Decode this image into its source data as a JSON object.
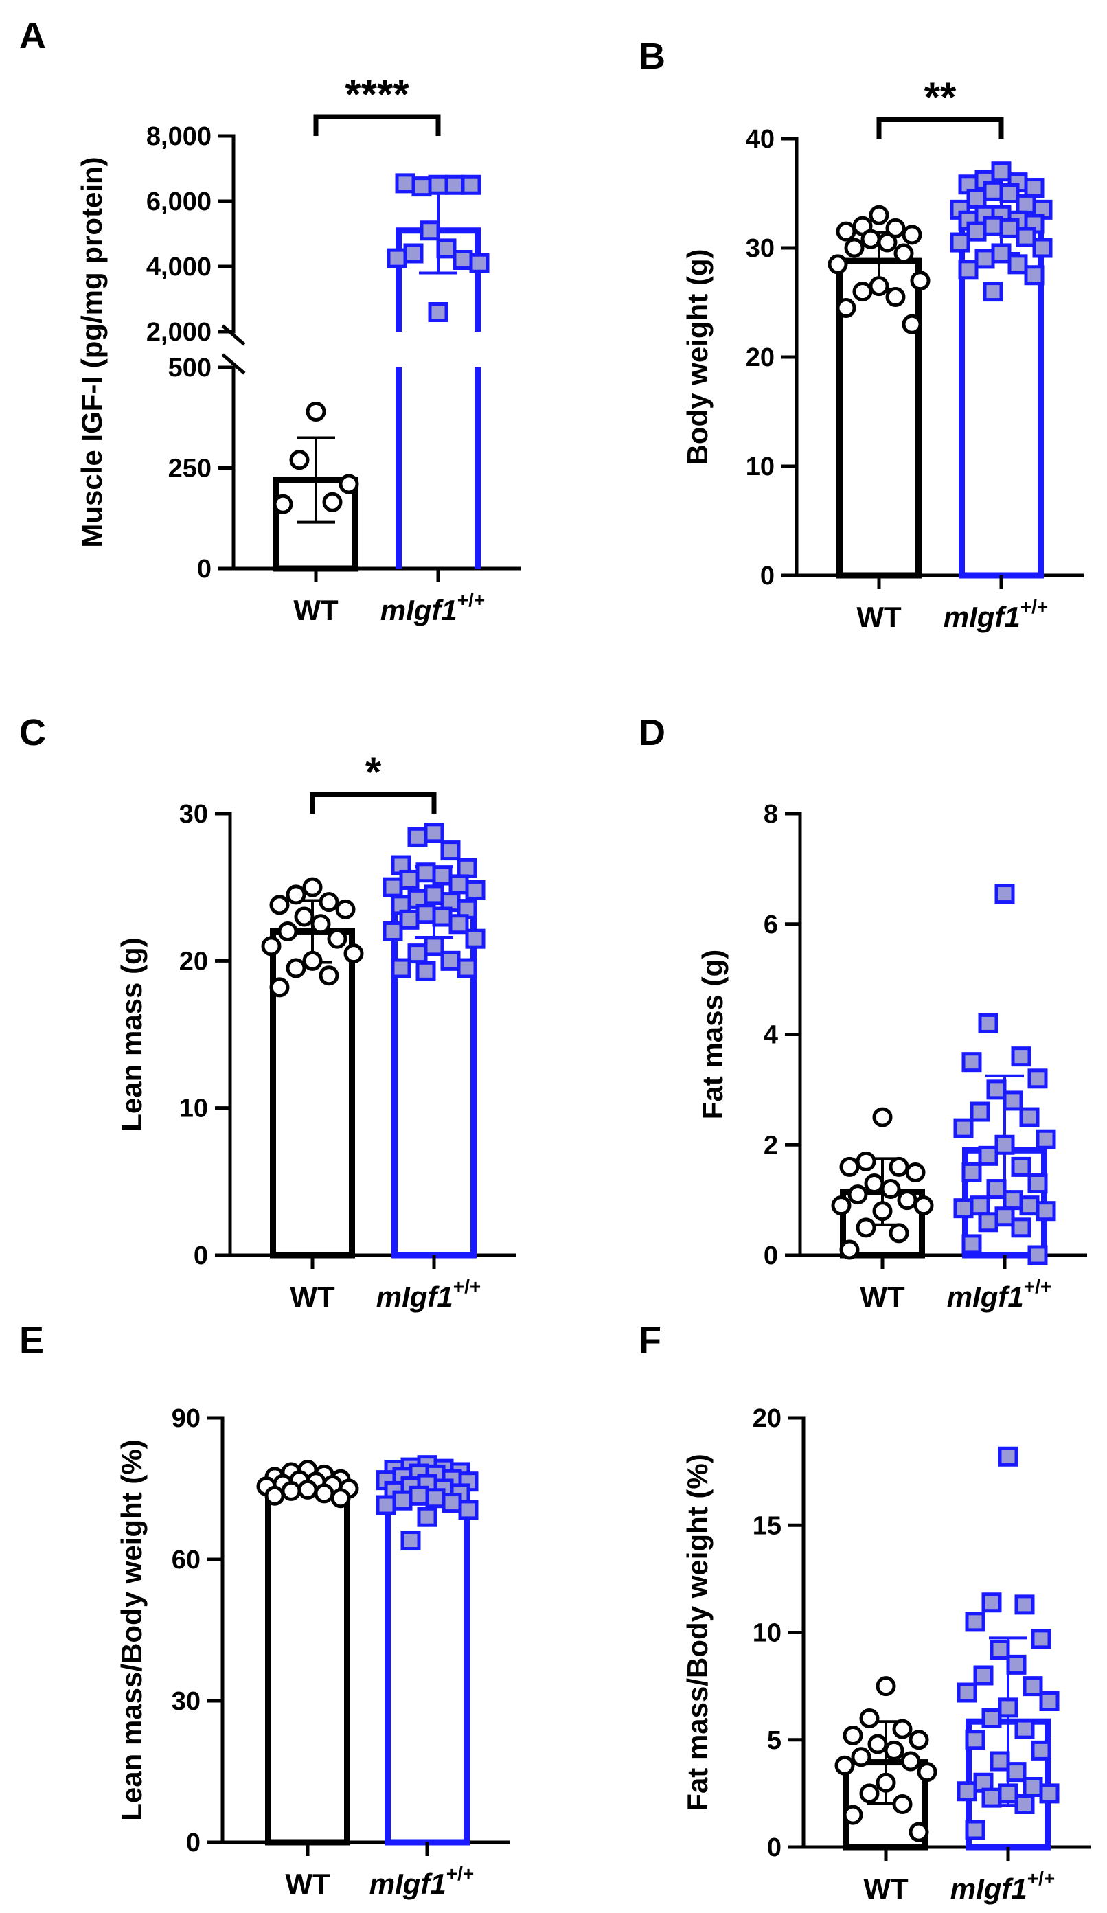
{
  "figure": {
    "colors": {
      "wt": "#000000",
      "mut": "#1a1aff",
      "mut_fill": "#9a9ad6",
      "bg": "#ffffff"
    }
  },
  "chart_data": [
    {
      "panel": "A",
      "type": "bar",
      "ylabel": "Muscle IGF-I (pg/mg protein)",
      "categories": [
        "WT",
        "mIgf1",
        "+/+"
      ],
      "broken_axis": true,
      "lower_ticks": [
        0,
        250,
        500
      ],
      "upper_ticks": [
        2000,
        4000,
        6000,
        8000
      ],
      "tick_labels": [
        "0",
        "250",
        "500",
        "2,000",
        "4,000",
        "6,000",
        "8,000"
      ],
      "significance": "****",
      "series": [
        {
          "name": "WT",
          "mean": 220,
          "sd": 105,
          "points": [
            390,
            270,
            165,
            160,
            210
          ]
        },
        {
          "name": "mIgf1+/+",
          "mean": 5100,
          "sd": 1300,
          "points": [
            6500,
            6450,
            6500,
            6550,
            6500,
            5100,
            4550,
            4400,
            4200,
            4250,
            4100,
            2600
          ]
        }
      ]
    },
    {
      "panel": "B",
      "type": "bar",
      "ylabel": "Body weight (g)",
      "categories": [
        "WT",
        "mIgf1",
        "+/+"
      ],
      "ylim": [
        0,
        40
      ],
      "ticks": [
        0,
        10,
        20,
        30,
        40
      ],
      "significance": "**",
      "series": [
        {
          "name": "WT",
          "mean": 28.8,
          "sd": 2.6,
          "points": [
            33,
            32,
            31.8,
            31.5,
            31.2,
            30.8,
            30.5,
            30,
            29.5,
            28.5,
            27,
            26.5,
            26,
            25.5,
            24.5,
            23
          ]
        },
        {
          "name": "mIgf1+/+",
          "mean": 32.1,
          "sd": 2.6,
          "points": [
            37,
            36.2,
            36,
            35.8,
            35.5,
            35.2,
            35,
            34.5,
            34,
            33.5,
            33.5,
            33,
            33,
            32.5,
            32.5,
            32.2,
            32,
            31.8,
            31.5,
            31,
            30.5,
            30,
            29.5,
            29,
            28.5,
            28,
            27.5,
            26
          ]
        }
      ]
    },
    {
      "panel": "C",
      "type": "bar",
      "ylabel": "Lean mass (g)",
      "categories": [
        "WT",
        "mIgf1",
        "+/+"
      ],
      "ylim": [
        0,
        30
      ],
      "ticks": [
        0,
        10,
        20,
        30
      ],
      "significance": "*",
      "series": [
        {
          "name": "WT",
          "mean": 22,
          "sd": 2.1,
          "points": [
            25,
            24.5,
            24,
            23.8,
            23.5,
            23,
            22.5,
            22,
            21.5,
            21,
            20.5,
            20,
            19.5,
            19,
            18.2
          ]
        },
        {
          "name": "mIgf1+/+",
          "mean": 24,
          "sd": 2.4,
          "points": [
            28.7,
            28.4,
            27.5,
            26.5,
            26.3,
            26,
            25.8,
            25.5,
            25.2,
            25,
            24.8,
            24.5,
            24.2,
            24,
            23.8,
            23.5,
            23.2,
            23,
            22.8,
            22.5,
            22,
            21.5,
            21,
            20.5,
            20,
            19.5,
            19.5,
            19.3
          ]
        }
      ]
    },
    {
      "panel": "D",
      "type": "bar",
      "ylabel": "Fat mass (g)",
      "categories": [
        "WT",
        "mIgf1",
        "+/+"
      ],
      "ylim": [
        0,
        8
      ],
      "ticks": [
        0,
        2,
        4,
        6,
        8
      ],
      "significance": "",
      "series": [
        {
          "name": "WT",
          "mean": 1.15,
          "sd": 0.6,
          "points": [
            2.5,
            1.7,
            1.6,
            1.6,
            1.5,
            1.3,
            1.2,
            1.1,
            1.0,
            0.9,
            0.9,
            0.8,
            0.5,
            0.4,
            0.1
          ]
        },
        {
          "name": "mIgf1+/+",
          "mean": 1.9,
          "sd": 1.35,
          "points": [
            6.55,
            4.2,
            3.6,
            3.5,
            3.2,
            3.0,
            2.8,
            2.6,
            2.5,
            2.3,
            2.1,
            2.0,
            1.8,
            1.6,
            1.5,
            1.3,
            1.2,
            1.0,
            0.9,
            0.9,
            0.85,
            0.8,
            0.7,
            0.6,
            0.5,
            0.2,
            0.0
          ]
        }
      ]
    },
    {
      "panel": "E",
      "type": "bar",
      "ylabel": "Lean mass/Body weight (%)",
      "categories": [
        "WT",
        "mIgf1",
        "+/+"
      ],
      "ylim": [
        0,
        90
      ],
      "ticks": [
        0,
        30,
        60,
        90
      ],
      "significance": "",
      "series": [
        {
          "name": "WT",
          "mean": 76,
          "sd": 1.5,
          "points": [
            79,
            78.5,
            78,
            77.5,
            77,
            76.8,
            76.5,
            76,
            75.8,
            75.5,
            75,
            74.8,
            74.5,
            74,
            73.5,
            73
          ]
        },
        {
          "name": "mIgf1+/+",
          "mean": 75.5,
          "sd": 3.2,
          "points": [
            80,
            79.5,
            79.2,
            79,
            78.5,
            78.2,
            78,
            77.5,
            77,
            76.8,
            76.5,
            76,
            75.5,
            75,
            74.5,
            74,
            73.5,
            73,
            72.5,
            72,
            71.5,
            70.5,
            69,
            64
          ]
        }
      ]
    },
    {
      "panel": "F",
      "type": "bar",
      "ylabel": "Fat mass/Body weight (%)",
      "categories": [
        "WT",
        "mIgf1",
        "+/+"
      ],
      "ylim": [
        0,
        20
      ],
      "ticks": [
        0,
        5,
        10,
        15,
        20
      ],
      "significance": "",
      "series": [
        {
          "name": "WT",
          "mean": 3.95,
          "sd": 1.9,
          "points": [
            7.5,
            6.0,
            5.5,
            5.2,
            5.0,
            4.8,
            4.5,
            4.2,
            4.0,
            3.8,
            3.5,
            3.0,
            2.5,
            2.0,
            1.5,
            0.7
          ]
        },
        {
          "name": "mIgf1+/+",
          "mean": 5.85,
          "sd": 3.9,
          "points": [
            18.2,
            11.4,
            11.3,
            10.5,
            9.7,
            9.2,
            8.5,
            8.0,
            7.5,
            7.2,
            6.8,
            6.5,
            6.0,
            5.5,
            5.0,
            4.5,
            4.0,
            3.5,
            3.0,
            2.8,
            2.6,
            2.5,
            2.5,
            2.3,
            2.0,
            0.8
          ]
        }
      ]
    }
  ]
}
